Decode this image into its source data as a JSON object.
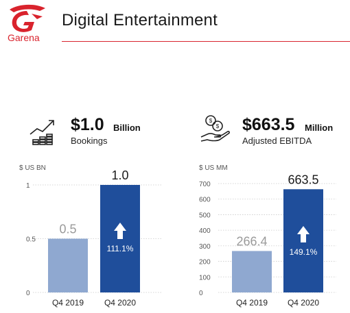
{
  "brand": {
    "logo_text": "Garena",
    "brand_color": "#d9232d"
  },
  "page": {
    "title": "Digital Entertainment"
  },
  "kpis": [
    {
      "icon": "growth-chart-icon",
      "value": "$1.0",
      "unit": "Billion",
      "label": "Bookings"
    },
    {
      "icon": "money-hand-icon",
      "value": "$663.5",
      "unit": "Million",
      "label": "Adjusted EBITDA"
    }
  ],
  "colors": {
    "bar_light": "#8fa8d0",
    "bar_dark": "#1f4e9b",
    "gridline": "#c9c9c9"
  },
  "chart_data": [
    {
      "type": "bar",
      "ylabel": "$ US BN",
      "categories": [
        "Q4 2019",
        "Q4 2020"
      ],
      "values": [
        0.5,
        1.0
      ],
      "value_labels": [
        "0.5",
        "1.0"
      ],
      "ylim": [
        0,
        1
      ],
      "yticks": [
        0,
        0.5,
        1
      ],
      "ytick_labels": [
        "0",
        "0.5",
        "1"
      ],
      "growth_label": "111.1%",
      "grid": true
    },
    {
      "type": "bar",
      "ylabel": "$ US MM",
      "categories": [
        "Q4 2019",
        "Q4 2020"
      ],
      "values": [
        266.4,
        663.5
      ],
      "value_labels": [
        "266.4",
        "663.5"
      ],
      "ylim": [
        0,
        700
      ],
      "yticks": [
        0,
        100,
        200,
        300,
        400,
        500,
        600,
        700
      ],
      "ytick_labels": [
        "0",
        "100",
        "200",
        "300",
        "400",
        "500",
        "600",
        "700"
      ],
      "growth_label": "149.1%",
      "grid": true
    }
  ]
}
